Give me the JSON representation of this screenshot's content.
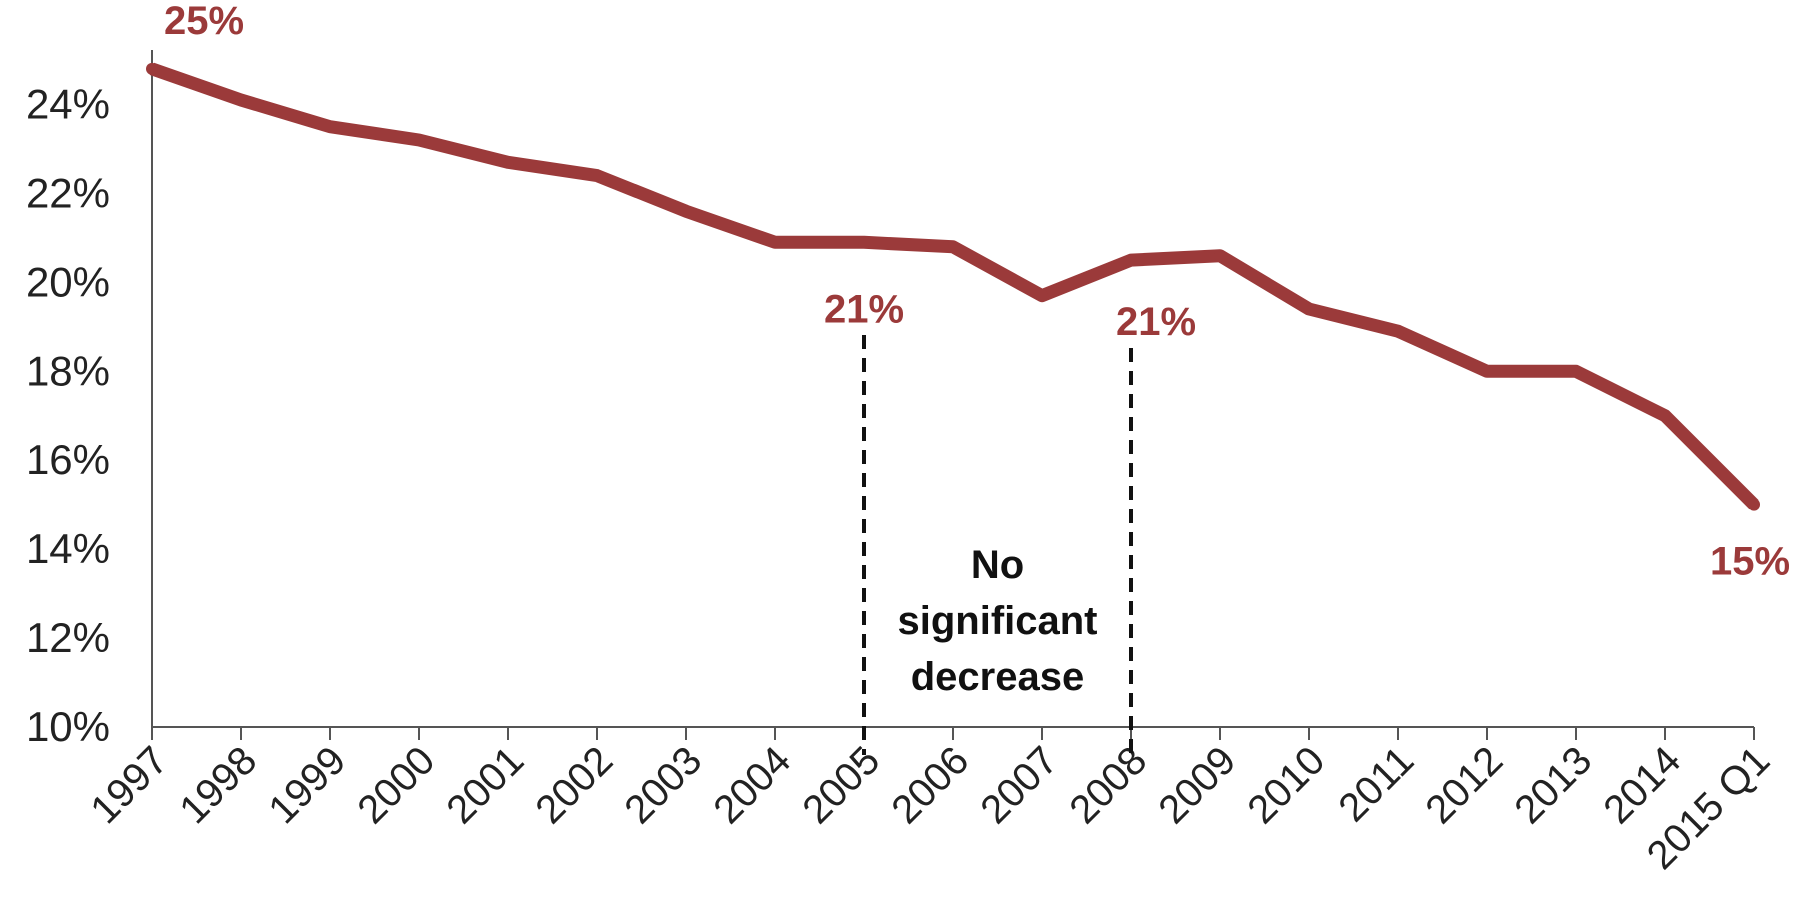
{
  "chart_data": {
    "type": "line",
    "title": "",
    "xlabel": "",
    "ylabel": "",
    "categories": [
      "1997",
      "1998",
      "1999",
      "2000",
      "2001",
      "2002",
      "2003",
      "2004",
      "2005",
      "2006",
      "2007",
      "2008",
      "2009",
      "2010",
      "2011",
      "2012",
      "2013",
      "2014",
      "2015 Q1"
    ],
    "series": [
      {
        "values": [
          24.8,
          24.1,
          23.5,
          23.2,
          22.7,
          22.4,
          21.6,
          20.9,
          20.9,
          20.8,
          19.7,
          20.5,
          20.6,
          19.4,
          18.9,
          18.0,
          18.0,
          17.0,
          15.0
        ]
      }
    ],
    "ylim": [
      10,
      25
    ],
    "yticks": [
      "10%",
      "12%",
      "14%",
      "16%",
      "18%",
      "20%",
      "22%",
      "24%"
    ],
    "ytick_values": [
      10,
      12,
      14,
      16,
      18,
      20,
      22,
      24
    ],
    "grid": false,
    "legend": "none",
    "line_color": "#9b3a3a",
    "data_labels": [
      {
        "category": "1997",
        "text": "25%"
      },
      {
        "category": "2005",
        "text": "21%"
      },
      {
        "category": "2008",
        "text": "21%"
      },
      {
        "category": "2015 Q1",
        "text": "15%"
      }
    ],
    "reference_lines": [
      {
        "category": "2005",
        "style": "dashed"
      },
      {
        "category": "2008",
        "style": "dashed"
      }
    ],
    "annotation": {
      "lines": [
        "No",
        "significant",
        "decrease"
      ]
    }
  }
}
